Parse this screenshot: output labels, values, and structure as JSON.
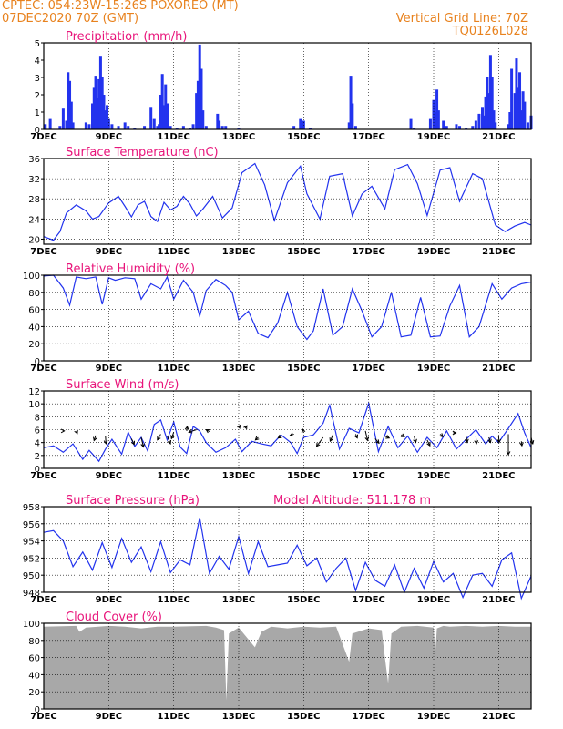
{
  "header": {
    "line1": "CPTEC:   054:23W-15:26S   POXOREO (MT)",
    "line2": "07DEC2020 70Z (GMT)",
    "grid_note": "Vertical Grid Line: 70Z",
    "code": "TQ0126L028"
  },
  "colors": {
    "header": "#e8821e",
    "title": "#e8147a",
    "line": "#2233ee",
    "cloud": "#a8a8a8"
  },
  "x_ticks": [
    "7DEC",
    "9DEC",
    "11DEC",
    "13DEC",
    "15DEC",
    "17DEC",
    "19DEC",
    "21DEC"
  ],
  "chart_data": [
    {
      "type": "bar",
      "title": "Precipitation (mm/h)",
      "ylim": [
        0,
        5
      ],
      "yticks": [
        "0",
        "1",
        "2",
        "3",
        "4",
        "5"
      ],
      "x_range_days": [
        0,
        15
      ],
      "bars": [
        [
          0.05,
          0.3
        ],
        [
          0.2,
          0.6
        ],
        [
          0.5,
          0.2
        ],
        [
          0.6,
          1.2
        ],
        [
          0.7,
          0.5
        ],
        [
          0.75,
          3.3
        ],
        [
          0.8,
          2.8
        ],
        [
          0.85,
          1.6
        ],
        [
          0.9,
          0.4
        ],
        [
          1.3,
          0.4
        ],
        [
          1.4,
          0.3
        ],
        [
          1.5,
          1.5
        ],
        [
          1.55,
          2.4
        ],
        [
          1.6,
          3.1
        ],
        [
          1.65,
          1.8
        ],
        [
          1.7,
          2.9
        ],
        [
          1.75,
          4.2
        ],
        [
          1.8,
          3.0
        ],
        [
          1.85,
          2.0
        ],
        [
          1.9,
          1.1
        ],
        [
          1.95,
          1.4
        ],
        [
          2.0,
          0.6
        ],
        [
          2.1,
          0.3
        ],
        [
          2.3,
          0.2
        ],
        [
          2.5,
          0.4
        ],
        [
          2.6,
          0.2
        ],
        [
          2.8,
          0.1
        ],
        [
          3.1,
          0.2
        ],
        [
          3.3,
          1.3
        ],
        [
          3.4,
          0.6
        ],
        [
          3.5,
          0.2
        ],
        [
          3.55,
          0.3
        ],
        [
          3.6,
          2.0
        ],
        [
          3.65,
          3.2
        ],
        [
          3.7,
          1.4
        ],
        [
          3.75,
          2.6
        ],
        [
          3.8,
          1.5
        ],
        [
          3.9,
          0.2
        ],
        [
          4.1,
          0.1
        ],
        [
          4.3,
          0.2
        ],
        [
          4.5,
          0.1
        ],
        [
          4.6,
          0.3
        ],
        [
          4.7,
          2.1
        ],
        [
          4.75,
          2.8
        ],
        [
          4.8,
          4.9
        ],
        [
          4.85,
          3.5
        ],
        [
          4.9,
          1.1
        ],
        [
          5.0,
          0.2
        ],
        [
          5.35,
          0.9
        ],
        [
          5.4,
          0.5
        ],
        [
          5.5,
          0.2
        ],
        [
          5.6,
          0.2
        ],
        [
          6.0,
          0.1
        ],
        [
          7.7,
          0.2
        ],
        [
          7.9,
          0.6
        ],
        [
          8.0,
          0.5
        ],
        [
          8.2,
          0.1
        ],
        [
          9.4,
          0.4
        ],
        [
          9.45,
          3.1
        ],
        [
          9.5,
          1.5
        ],
        [
          9.6,
          0.2
        ],
        [
          11.3,
          0.6
        ],
        [
          11.4,
          0.1
        ],
        [
          11.9,
          0.6
        ],
        [
          12.0,
          1.7
        ],
        [
          12.05,
          1.0
        ],
        [
          12.1,
          2.3
        ],
        [
          12.15,
          1.1
        ],
        [
          12.3,
          0.5
        ],
        [
          12.4,
          0.2
        ],
        [
          12.7,
          0.3
        ],
        [
          12.8,
          0.2
        ],
        [
          13.0,
          0.1
        ],
        [
          13.2,
          0.2
        ],
        [
          13.3,
          0.5
        ],
        [
          13.4,
          0.9
        ],
        [
          13.5,
          1.3
        ],
        [
          13.55,
          0.8
        ],
        [
          13.6,
          1.9
        ],
        [
          13.65,
          3.0
        ],
        [
          13.7,
          2.1
        ],
        [
          13.75,
          4.3
        ],
        [
          13.8,
          3.0
        ],
        [
          13.85,
          1.1
        ],
        [
          13.9,
          0.4
        ],
        [
          14.3,
          0.3
        ],
        [
          14.35,
          1.0
        ],
        [
          14.4,
          3.5
        ],
        [
          14.5,
          2.1
        ],
        [
          14.55,
          4.1
        ],
        [
          14.6,
          2.4
        ],
        [
          14.65,
          3.3
        ],
        [
          14.7,
          1.1
        ],
        [
          14.75,
          2.2
        ],
        [
          14.8,
          1.6
        ],
        [
          14.9,
          0.4
        ],
        [
          15.0,
          0.8
        ]
      ]
    },
    {
      "type": "line",
      "title": "Surface Temperature (nC)",
      "ylim": [
        19,
        36
      ],
      "ytick_values": [
        20,
        24,
        28,
        32,
        36
      ],
      "yticks": [
        "20",
        "24",
        "28",
        "32",
        "36"
      ],
      "x": [
        0,
        0.3,
        0.5,
        0.7,
        1.0,
        1.3,
        1.5,
        1.7,
        2.0,
        2.3,
        2.5,
        2.7,
        2.9,
        3.1,
        3.3,
        3.5,
        3.7,
        3.9,
        4.1,
        4.3,
        4.5,
        4.7,
        4.9,
        5.2,
        5.5,
        5.8,
        6.1,
        6.5,
        6.8,
        7.1,
        7.5,
        7.9,
        8.1,
        8.5,
        8.8,
        9.2,
        9.5,
        9.8,
        10.1,
        10.5,
        10.8,
        11.2,
        11.5,
        11.8,
        12.2,
        12.5,
        12.8,
        13.2,
        13.5,
        13.9,
        14.2,
        14.5,
        14.8,
        15.0
      ],
      "y": [
        20.5,
        19.8,
        21.5,
        25.2,
        26.8,
        25.6,
        24.0,
        24.5,
        27.2,
        28.5,
        26.5,
        24.4,
        26.8,
        27.5,
        24.5,
        23.5,
        27.3,
        25.8,
        26.5,
        28.5,
        27.0,
        24.6,
        26.0,
        28.5,
        24.2,
        26.2,
        33.2,
        35.0,
        30.8,
        23.7,
        31.2,
        34.5,
        29.0,
        24.0,
        32.5,
        33.0,
        24.6,
        29.0,
        30.5,
        26.0,
        33.8,
        34.8,
        31.0,
        24.7,
        33.7,
        34.2,
        27.5,
        33.0,
        32.0,
        22.8,
        21.5,
        22.6,
        23.3,
        22.8
      ]
    },
    {
      "type": "line",
      "title": "Relative Humidity (%)",
      "ylim": [
        0,
        100
      ],
      "ytick_values": [
        0,
        20,
        40,
        60,
        80,
        100
      ],
      "yticks": [
        "0",
        "20",
        "40",
        "60",
        "80",
        "100"
      ],
      "x": [
        0,
        0.3,
        0.6,
        0.8,
        1.0,
        1.3,
        1.6,
        1.8,
        2.0,
        2.2,
        2.5,
        2.8,
        3.0,
        3.3,
        3.6,
        3.8,
        4.0,
        4.3,
        4.6,
        4.8,
        5.0,
        5.3,
        5.6,
        5.8,
        6.0,
        6.3,
        6.6,
        6.9,
        7.2,
        7.5,
        7.8,
        8.1,
        8.3,
        8.6,
        8.9,
        9.2,
        9.5,
        9.8,
        10.1,
        10.4,
        10.7,
        11.0,
        11.3,
        11.6,
        11.9,
        12.2,
        12.5,
        12.8,
        13.1,
        13.4,
        13.8,
        14.1,
        14.4,
        14.7,
        15.0
      ],
      "y": [
        99,
        100,
        85,
        65,
        98,
        96,
        98,
        66,
        97,
        94,
        97,
        96,
        72,
        90,
        84,
        98,
        72,
        94,
        80,
        52,
        82,
        95,
        88,
        80,
        48,
        58,
        32,
        27,
        44,
        80,
        40,
        25,
        35,
        84,
        30,
        40,
        84,
        58,
        28,
        40,
        80,
        28,
        30,
        74,
        28,
        29,
        64,
        88,
        28,
        40,
        90,
        72,
        85,
        90,
        92
      ]
    },
    {
      "type": "line",
      "title": "Surface Wind (m/s)",
      "ylim": [
        0,
        12
      ],
      "ytick_values": [
        0,
        2,
        4,
        6,
        8,
        10,
        12
      ],
      "yticks": [
        "0",
        "2",
        "4",
        "6",
        "8",
        "10",
        "12"
      ],
      "x": [
        0,
        0.3,
        0.6,
        0.9,
        1.2,
        1.4,
        1.7,
        1.9,
        2.1,
        2.4,
        2.6,
        2.8,
        3.0,
        3.2,
        3.4,
        3.6,
        3.8,
        4.0,
        4.2,
        4.4,
        4.6,
        4.8,
        5.0,
        5.3,
        5.6,
        5.9,
        6.1,
        6.4,
        6.7,
        7.0,
        7.3,
        7.6,
        7.8,
        8.0,
        8.3,
        8.6,
        8.8,
        9.1,
        9.4,
        9.7,
        10.0,
        10.3,
        10.6,
        10.9,
        11.2,
        11.5,
        11.8,
        12.1,
        12.4,
        12.7,
        13.0,
        13.3,
        13.6,
        13.8,
        14.0,
        14.3,
        14.6,
        14.8,
        15.0
      ],
      "y": [
        3.2,
        3.5,
        2.5,
        3.8,
        1.4,
        2.8,
        1.1,
        3.0,
        4.5,
        2.2,
        5.6,
        3.4,
        4.8,
        2.7,
        6.8,
        7.5,
        4.4,
        7.2,
        3.3,
        2.3,
        6.5,
        5.8,
        4.0,
        2.5,
        3.2,
        4.5,
        2.6,
        4.2,
        3.8,
        3.5,
        5.2,
        4.0,
        2.3,
        4.8,
        5.2,
        7.0,
        9.8,
        3.0,
        6.2,
        5.5,
        10.1,
        2.6,
        6.5,
        3.2,
        5.0,
        2.5,
        4.8,
        3.2,
        5.8,
        3.0,
        4.5,
        6.0,
        3.8,
        5.0,
        4.0,
        6.2,
        8.5,
        5.5,
        3.2
      ],
      "arrows": [
        [
          0.6,
          5.8,
          0.2,
          0.0
        ],
        [
          1.0,
          5.8,
          0.2,
          0.4
        ],
        [
          1.6,
          5.1,
          -0.3,
          0.8
        ],
        [
          1.9,
          5.0,
          0.1,
          1.2
        ],
        [
          2.7,
          4.6,
          0.5,
          0.9
        ],
        [
          3.0,
          4.8,
          0.4,
          1.5
        ],
        [
          3.6,
          5.3,
          -0.6,
          0.9
        ],
        [
          3.8,
          5.0,
          0.6,
          1.2
        ],
        [
          4.0,
          5.6,
          -0.4,
          1.0
        ],
        [
          4.4,
          5.8,
          0.1,
          -0.7
        ],
        [
          4.7,
          6.0,
          -1.4,
          0.4
        ],
        [
          5.1,
          5.7,
          -0.6,
          -0.3
        ],
        [
          6.0,
          6.2,
          0.3,
          -0.5
        ],
        [
          6.2,
          6.2,
          0.3,
          -0.4
        ],
        [
          6.6,
          4.8,
          -0.5,
          0.4
        ],
        [
          7.3,
          5.0,
          -0.5,
          0.3
        ],
        [
          7.7,
          5.3,
          -0.7,
          0.2
        ],
        [
          8.0,
          5.5,
          -0.2,
          -0.6
        ],
        [
          8.6,
          4.8,
          -1.2,
          1.4
        ],
        [
          8.9,
          5.2,
          -0.5,
          1.0
        ],
        [
          9.6,
          5.3,
          0.3,
          0.6
        ],
        [
          9.9,
          5.8,
          0.4,
          1.5
        ],
        [
          10.2,
          4.6,
          0.7,
          0.7
        ],
        [
          10.5,
          5.0,
          0.8,
          0.3
        ],
        [
          11.0,
          5.2,
          0.6,
          0.3
        ],
        [
          11.4,
          5.0,
          0.3,
          1.0
        ],
        [
          11.8,
          4.4,
          0.5,
          0.9
        ],
        [
          12.2,
          5.3,
          0.5,
          0.4
        ],
        [
          12.6,
          5.5,
          0.5,
          0.0
        ],
        [
          13.0,
          5.0,
          0.2,
          1.0
        ],
        [
          13.3,
          5.0,
          0.1,
          1.2
        ],
        [
          13.7,
          4.8,
          0.3,
          0.8
        ],
        [
          14.0,
          5.0,
          0.1,
          1.0
        ],
        [
          14.3,
          5.3,
          0.0,
          3.2
        ],
        [
          14.7,
          4.2,
          0.1,
          0.7
        ],
        [
          15.0,
          4.8,
          0.3,
          1.0
        ]
      ]
    },
    {
      "type": "line",
      "title": "Surface Pressure (hPa)",
      "annotation": "Model Altitude: 511.178 m",
      "ylim": [
        948,
        958
      ],
      "ytick_values": [
        948,
        950,
        952,
        954,
        956,
        958
      ],
      "yticks": [
        "948",
        "950",
        "952",
        "954",
        "956",
        "958"
      ],
      "x": [
        0,
        0.3,
        0.6,
        0.9,
        1.2,
        1.5,
        1.8,
        2.1,
        2.4,
        2.7,
        3.0,
        3.3,
        3.6,
        3.9,
        4.2,
        4.5,
        4.8,
        5.1,
        5.4,
        5.7,
        6.0,
        6.3,
        6.6,
        6.9,
        7.2,
        7.5,
        7.8,
        8.1,
        8.4,
        8.7,
        9.0,
        9.3,
        9.6,
        9.9,
        10.2,
        10.5,
        10.8,
        11.1,
        11.4,
        11.7,
        12.0,
        12.3,
        12.6,
        12.9,
        13.2,
        13.5,
        13.8,
        14.1,
        14.4,
        14.7,
        15.0
      ],
      "y": [
        955.0,
        955.2,
        954.0,
        951.0,
        952.7,
        950.6,
        953.8,
        950.9,
        954.3,
        951.5,
        953.3,
        950.4,
        953.9,
        950.3,
        951.8,
        951.2,
        956.7,
        950.2,
        952.2,
        950.7,
        954.5,
        950.2,
        953.9,
        951.0,
        951.2,
        951.4,
        953.5,
        951.1,
        952.0,
        949.2,
        950.8,
        952.0,
        948.2,
        951.5,
        949.4,
        948.7,
        951.2,
        948.0,
        950.8,
        948.5,
        951.6,
        949.2,
        950.2,
        947.4,
        950.0,
        950.2,
        948.7,
        951.8,
        952.6,
        947.3,
        949.9
      ]
    },
    {
      "type": "area",
      "title": "Cloud Cover (%)",
      "ylim": [
        0,
        100
      ],
      "ytick_values": [
        0,
        20,
        40,
        60,
        80,
        100
      ],
      "yticks": [
        "0",
        "20",
        "40",
        "60",
        "80",
        "100"
      ],
      "x": [
        0,
        1.0,
        1.1,
        1.3,
        2.0,
        2.5,
        3.0,
        3.5,
        4.0,
        5.0,
        5.3,
        5.55,
        5.62,
        5.7,
        6.0,
        6.5,
        6.7,
        7.0,
        7.5,
        8.0,
        8.5,
        9.0,
        9.4,
        9.5,
        10.0,
        10.4,
        10.5,
        10.6,
        10.7,
        11.0,
        11.5,
        12.0,
        12.05,
        12.1,
        12.3,
        12.5,
        13.0,
        13.5,
        14.0,
        14.5,
        15.0
      ],
      "y": [
        96,
        97,
        90,
        95,
        97,
        96,
        94,
        96,
        96,
        97,
        95,
        92,
        10,
        88,
        95,
        72,
        90,
        96,
        94,
        96,
        95,
        96,
        55,
        88,
        94,
        92,
        60,
        30,
        88,
        96,
        97,
        95,
        65,
        94,
        97,
        96,
        97,
        96,
        97,
        96,
        96
      ]
    }
  ]
}
